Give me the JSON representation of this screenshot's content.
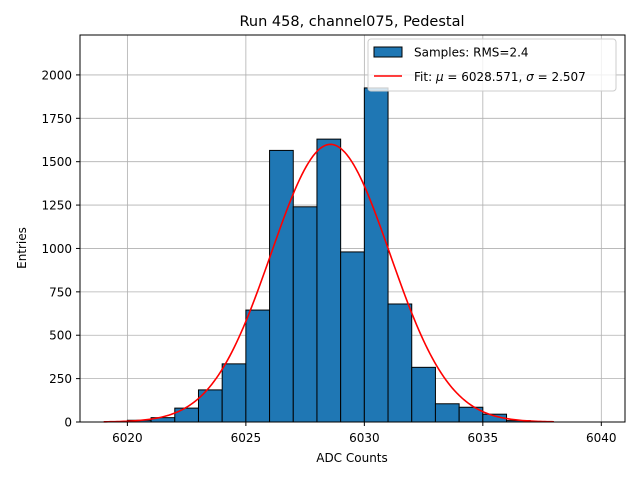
{
  "chart_data": {
    "type": "bar",
    "title": "Run 458, channel075, Pedestal",
    "xlabel": "ADC Counts",
    "ylabel": "Entries",
    "xlim": [
      6018.0,
      6041.0
    ],
    "ylim": [
      0,
      2230
    ],
    "grid": true,
    "x_ticks": [
      6020,
      6025,
      6030,
      6035,
      6040
    ],
    "y_ticks": [
      0,
      250,
      500,
      750,
      1000,
      1250,
      1500,
      1750,
      2000
    ],
    "histogram": {
      "name": "Samples: RMS=2.4",
      "bin_edges": [
        6020,
        6021,
        6022,
        6023,
        6024,
        6025,
        6026,
        6027,
        6028,
        6029,
        6030,
        6031,
        6032,
        6033,
        6034,
        6035,
        6036,
        6037
      ],
      "values": [
        10,
        25,
        80,
        185,
        335,
        645,
        1565,
        1240,
        1630,
        980,
        1925,
        680,
        315,
        105,
        85,
        45,
        8
      ],
      "color": "#1f77b4",
      "edgecolor": "#000000"
    },
    "fit": {
      "name": "Fit: μ = 6028.571, σ = 2.507",
      "legend_prefix": "Fit: ",
      "mu": 6028.571,
      "sigma": 2.507,
      "amplitude": 1600,
      "x_range": [
        6019,
        6038
      ],
      "color": "#ff0000"
    },
    "legend": {
      "placement": "upper-right",
      "entries": [
        {
          "label": "Samples: RMS=2.4",
          "kind": "patch"
        },
        {
          "label": "Fit: μ = 6028.571, σ = 2.507",
          "kind": "line"
        }
      ],
      "fit_parts": {
        "prefix": "Fit: ",
        "mu_symbol": "μ",
        "mu_text": " = 6028.571, ",
        "sigma_symbol": "σ",
        "sigma_text": " = 2.507"
      }
    }
  }
}
